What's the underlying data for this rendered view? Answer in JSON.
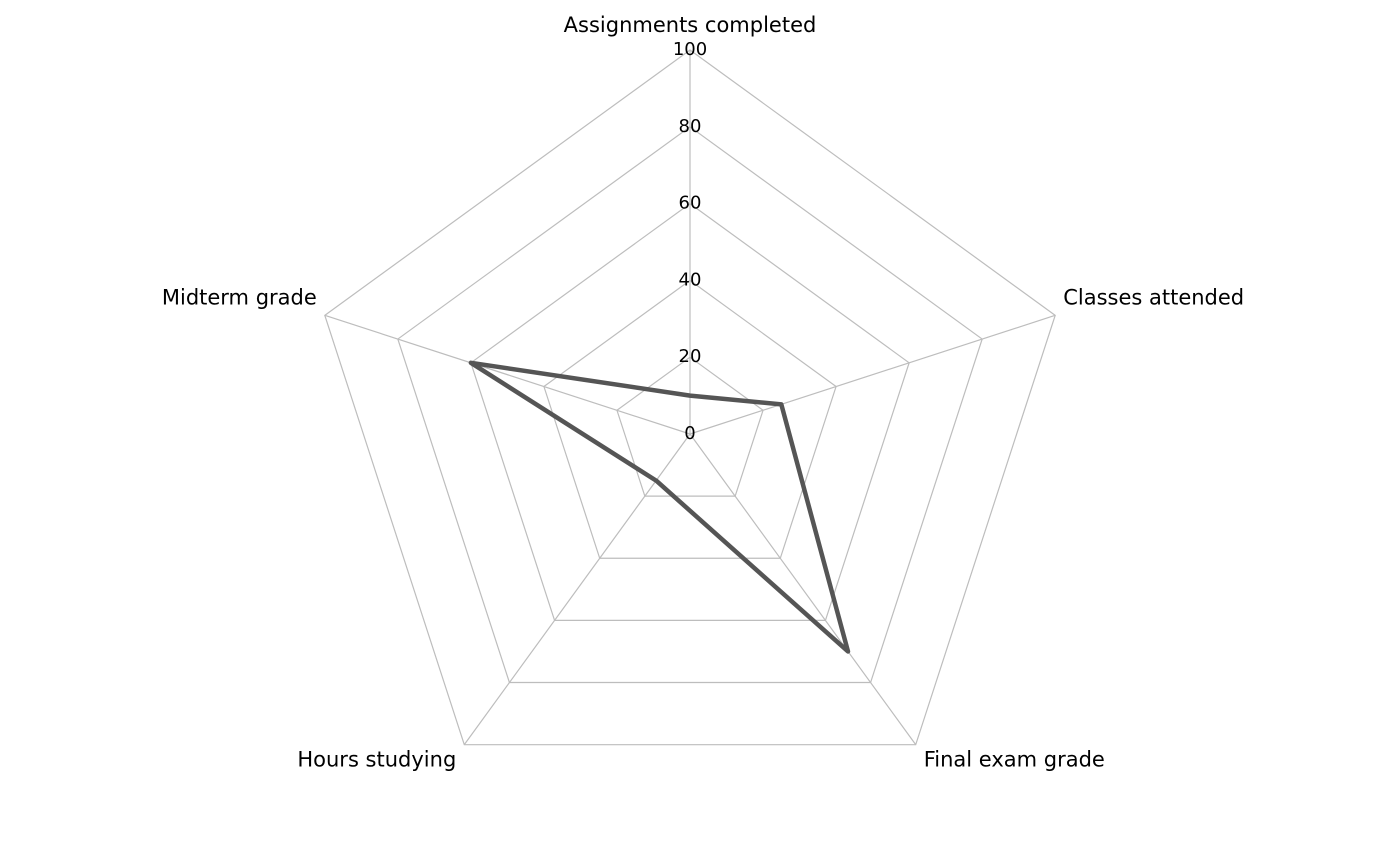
{
  "chart_data": {
    "type": "radar",
    "categories": [
      "Assignments completed",
      "Classes attended",
      "Final exam grade",
      "Hours studying",
      "Midterm grade"
    ],
    "values": [
      10,
      25,
      70,
      15,
      60
    ],
    "color": "#555555",
    "ylim": [
      0,
      100
    ],
    "yticks": [
      0,
      20,
      40,
      60,
      80,
      100
    ],
    "grid": true
  }
}
